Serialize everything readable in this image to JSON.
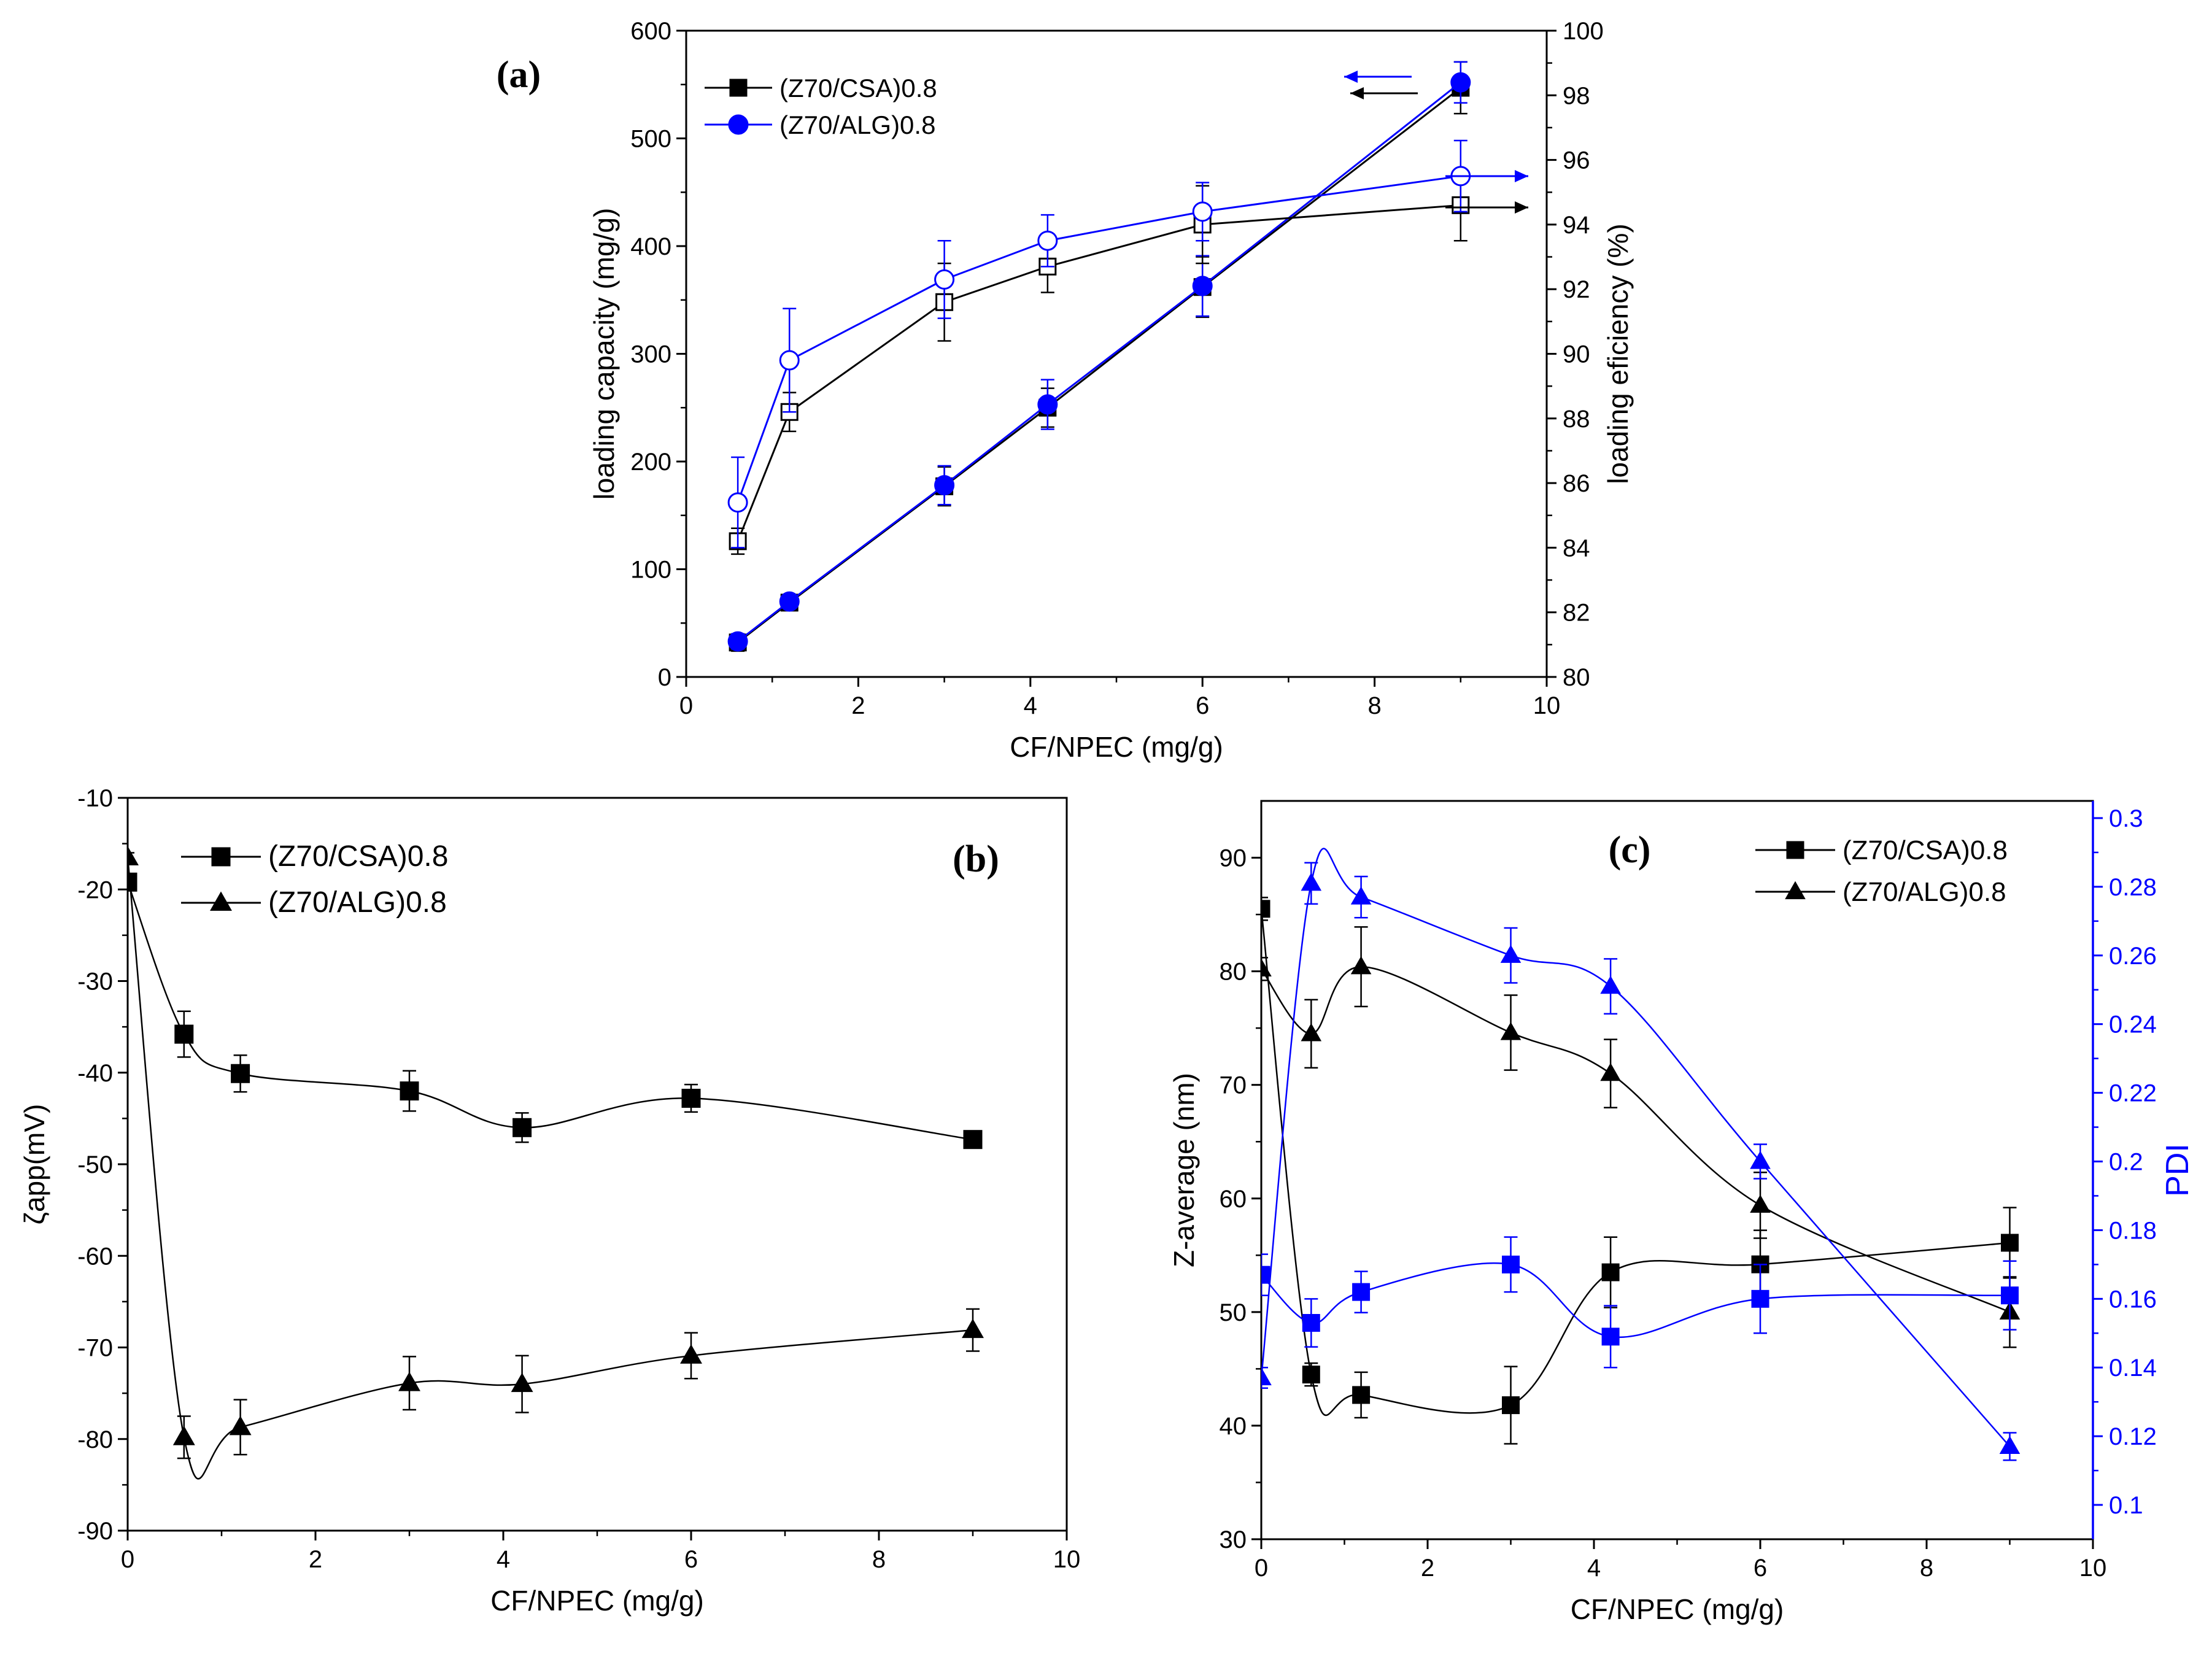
{
  "colors": {
    "black": "#000000",
    "blue": "#0000FF"
  },
  "chart_data": [
    {
      "panel": "a",
      "type": "line",
      "panel_label": "(a)",
      "xlabel": "CF/NPEC (mg/g)",
      "ylabel": "loading capacity (mg/g)",
      "y2label": "loading eficiency (%)",
      "xlim": [
        0,
        10
      ],
      "ylim": [
        0,
        600
      ],
      "y2lim": [
        80,
        100
      ],
      "xticks": [
        "0",
        "2",
        "4",
        "6",
        "8",
        "10"
      ],
      "yticks": [
        "0",
        "100",
        "200",
        "300",
        "400",
        "500",
        "600"
      ],
      "y2ticks": [
        "80",
        "82",
        "84",
        "86",
        "88",
        "90",
        "92",
        "94",
        "96",
        "98",
        "100"
      ],
      "legend_position": "top-left",
      "legend": [
        "(Z70/CSA)0.8",
        "(Z70/ALG)0.8"
      ],
      "series": [
        {
          "name": "(Z70/CSA)0.8",
          "axis": "left",
          "marker": "square-filled",
          "color": "#000000",
          "x": [
            0.6,
            1.2,
            3,
            4.2,
            6,
            9
          ],
          "y": [
            32,
            69,
            177,
            250,
            362,
            547
          ],
          "err": [
            8,
            6,
            18,
            18,
            28,
            24
          ]
        },
        {
          "name": "(Z70/ALG)0.8",
          "axis": "left",
          "marker": "circle-filled",
          "color": "#0000FF",
          "x": [
            0.6,
            1.2,
            3,
            4.2,
            6,
            9
          ],
          "y": [
            33,
            70,
            178,
            253,
            363,
            552
          ],
          "err": [
            7,
            6,
            18,
            23,
            28,
            19
          ]
        },
        {
          "name": "(Z70/CSA)0.8 efficiency",
          "axis": "right",
          "marker": "square-open",
          "color": "#000000",
          "x": [
            0.6,
            1.2,
            3,
            4.2,
            6,
            9
          ],
          "y": [
            84.2,
            88.2,
            91.6,
            92.7,
            94.0,
            94.6
          ],
          "err": [
            0.4,
            0.6,
            1.2,
            0.8,
            1.2,
            1.1
          ]
        },
        {
          "name": "(Z70/ALG)0.8 efficiency",
          "axis": "right",
          "marker": "circle-open",
          "color": "#0000FF",
          "x": [
            0.6,
            1.2,
            3,
            4.2,
            6,
            9
          ],
          "y": [
            85.4,
            89.8,
            92.3,
            93.5,
            94.4,
            95.5
          ],
          "err": [
            1.4,
            1.6,
            1.2,
            0.8,
            0.9,
            1.1
          ]
        }
      ]
    },
    {
      "panel": "b",
      "type": "line",
      "panel_label": "(b)",
      "xlabel": "CF/NPEC (mg/g)",
      "ylabel": "ζapp(mV)",
      "xlim": [
        0,
        10
      ],
      "ylim": [
        -90,
        -10
      ],
      "xticks": [
        "0",
        "2",
        "4",
        "6",
        "8",
        "10"
      ],
      "yticks": [
        "-90",
        "-80",
        "-70",
        "-60",
        "-50",
        "-40",
        "-30",
        "-20",
        "-10"
      ],
      "legend_position": "top-left",
      "legend": [
        "(Z70/CSA)0.8",
        "(Z70/ALG)0.8"
      ],
      "series": [
        {
          "name": "(Z70/CSA)0.8",
          "marker": "square-filled",
          "color": "#000000",
          "x": [
            0,
            0.6,
            1.2,
            3,
            4.2,
            6,
            9
          ],
          "y": [
            -19.2,
            -35.8,
            -40.1,
            -42.0,
            -46.0,
            -42.8,
            -47.3
          ],
          "err": [
            0.6,
            2.5,
            2.0,
            2.2,
            1.6,
            1.5,
            0.4
          ]
        },
        {
          "name": "(Z70/ALG)0.8",
          "marker": "triangle-filled",
          "color": "#000000",
          "x": [
            0,
            0.6,
            1.2,
            3,
            4.2,
            6,
            9
          ],
          "y": [
            -16.5,
            -79.8,
            -78.7,
            -73.9,
            -74.0,
            -70.9,
            -68.1
          ],
          "err": [
            0.5,
            2.3,
            3.0,
            2.9,
            3.1,
            2.5,
            2.3
          ]
        }
      ]
    },
    {
      "panel": "c",
      "type": "line",
      "panel_label": "(c)",
      "xlabel": "CF/NPEC (mg/g)",
      "ylabel": "Z-average (nm)",
      "y2label": "PDI",
      "xlim": [
        0,
        10
      ],
      "ylim": [
        30,
        95
      ],
      "y2lim": [
        0.09,
        0.305
      ],
      "xticks": [
        "0",
        "2",
        "4",
        "6",
        "8",
        "10"
      ],
      "yticks": [
        "30",
        "40",
        "50",
        "60",
        "70",
        "80",
        "90"
      ],
      "y2ticks": [
        "0.1",
        "0.12",
        "0.14",
        "0.16",
        "0.18",
        "0.2",
        "0.22",
        "0.24",
        "0.26",
        "0.28",
        "0.3"
      ],
      "legend_position": "top-right",
      "legend": [
        "(Z70/CSA)0.8",
        "(Z70/ALG)0.8"
      ],
      "series": [
        {
          "name": "(Z70/CSA)0.8",
          "axis": "left",
          "marker": "square-filled",
          "color": "#000000",
          "x": [
            0,
            0.6,
            1.2,
            3,
            4.2,
            6,
            9
          ],
          "y": [
            85.5,
            44.5,
            42.7,
            41.8,
            53.5,
            54.2,
            56.1
          ],
          "err": [
            1.0,
            1.0,
            2.0,
            3.4,
            3.1,
            3.0,
            3.1
          ]
        },
        {
          "name": "(Z70/ALG)0.8",
          "axis": "left",
          "marker": "triangle-filled",
          "color": "#000000",
          "x": [
            0,
            0.6,
            1.2,
            3,
            4.2,
            6,
            9
          ],
          "y": [
            80.2,
            74.5,
            80.4,
            74.6,
            71.0,
            59.4,
            50.0
          ],
          "err": [
            1.0,
            3.0,
            3.5,
            3.3,
            3.0,
            2.9,
            3.1
          ]
        },
        {
          "name": "(Z70/CSA)0.8 PDI",
          "axis": "right",
          "marker": "square-filled",
          "color": "#0000FF",
          "x": [
            0,
            0.6,
            1.2,
            3,
            4.2,
            6,
            9
          ],
          "y": [
            0.167,
            0.153,
            0.162,
            0.17,
            0.149,
            0.16,
            0.161
          ],
          "err": [
            0.006,
            0.007,
            0.006,
            0.008,
            0.009,
            0.01,
            0.01
          ]
        },
        {
          "name": "(Z70/ALG)0.8 PDI",
          "axis": "right",
          "marker": "triangle-filled",
          "color": "#0000FF",
          "x": [
            0,
            0.6,
            1.2,
            3,
            4.2,
            6,
            9
          ],
          "y": [
            0.137,
            0.281,
            0.277,
            0.26,
            0.251,
            0.2,
            0.117
          ],
          "err": [
            0.003,
            0.006,
            0.006,
            0.008,
            0.008,
            0.005,
            0.004
          ]
        }
      ]
    }
  ]
}
